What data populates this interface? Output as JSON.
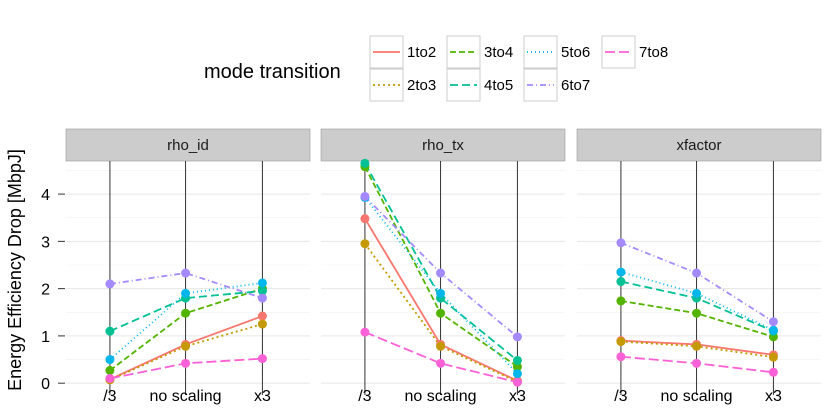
{
  "chart_data": {
    "type": "line",
    "ylabel": "Energy Efficiency Drop [MbpJ]",
    "xlabel": "",
    "categories": [
      "/3",
      "no scaling",
      "x3"
    ],
    "y_ticks": [
      0,
      1,
      2,
      3,
      4
    ],
    "y_tick_labels": [
      "0",
      "1",
      "2",
      "3",
      "4"
    ],
    "ylim": [
      -0.25,
      4.7
    ],
    "grid": true,
    "legend": {
      "title": "mode transition",
      "position": "top",
      "entries": [
        "1to2",
        "2to3",
        "3to4",
        "4to5",
        "5to6",
        "6to7",
        "7to8"
      ]
    },
    "series_styles": {
      "1to2": {
        "color": "#F8766D",
        "dash": ""
      },
      "2to3": {
        "color": "#C49A00",
        "dash": "2,3"
      },
      "3to4": {
        "color": "#53B400",
        "dash": "6,3"
      },
      "4to5": {
        "color": "#00C094",
        "dash": "8,4"
      },
      "5to6": {
        "color": "#00B6EB",
        "dash": "1,3"
      },
      "6to7": {
        "color": "#A58AFF",
        "dash": "6,3,1,3"
      },
      "7to8": {
        "color": "#FB61D7",
        "dash": "10,4"
      }
    },
    "panels": [
      {
        "label": "rho_id",
        "series": [
          {
            "name": "1to2",
            "values": [
              0.08,
              0.82,
              1.42
            ]
          },
          {
            "name": "2to3",
            "values": [
              0.07,
              0.78,
              1.25
            ]
          },
          {
            "name": "3to4",
            "values": [
              0.27,
              1.48,
              2.0
            ]
          },
          {
            "name": "4to5",
            "values": [
              1.1,
              1.8,
              1.95
            ]
          },
          {
            "name": "5to6",
            "values": [
              0.5,
              1.9,
              2.12
            ]
          },
          {
            "name": "6to7",
            "values": [
              2.1,
              2.33,
              1.8
            ]
          },
          {
            "name": "7to8",
            "values": [
              0.1,
              0.42,
              0.52
            ]
          }
        ]
      },
      {
        "label": "rho_tx",
        "series": [
          {
            "name": "1to2",
            "values": [
              3.48,
              0.82,
              0.05
            ]
          },
          {
            "name": "2to3",
            "values": [
              2.95,
              0.78,
              0.03
            ]
          },
          {
            "name": "3to4",
            "values": [
              4.58,
              1.48,
              0.35
            ]
          },
          {
            "name": "4to5",
            "values": [
              4.65,
              1.8,
              0.48
            ]
          },
          {
            "name": "5to6",
            "values": [
              3.93,
              1.9,
              0.2
            ]
          },
          {
            "name": "6to7",
            "values": [
              3.95,
              2.33,
              0.98
            ]
          },
          {
            "name": "7to8",
            "values": [
              1.08,
              0.42,
              0.02
            ]
          }
        ]
      },
      {
        "label": "xfactor",
        "series": [
          {
            "name": "1to2",
            "values": [
              0.9,
              0.82,
              0.6
            ]
          },
          {
            "name": "2to3",
            "values": [
              0.88,
              0.78,
              0.55
            ]
          },
          {
            "name": "3to4",
            "values": [
              1.74,
              1.48,
              0.98
            ]
          },
          {
            "name": "4to5",
            "values": [
              2.15,
              1.8,
              1.1
            ]
          },
          {
            "name": "5to6",
            "values": [
              2.35,
              1.9,
              1.12
            ]
          },
          {
            "name": "6to7",
            "values": [
              2.97,
              2.33,
              1.3
            ]
          },
          {
            "name": "7to8",
            "values": [
              0.56,
              0.42,
              0.23
            ]
          }
        ]
      }
    ]
  }
}
